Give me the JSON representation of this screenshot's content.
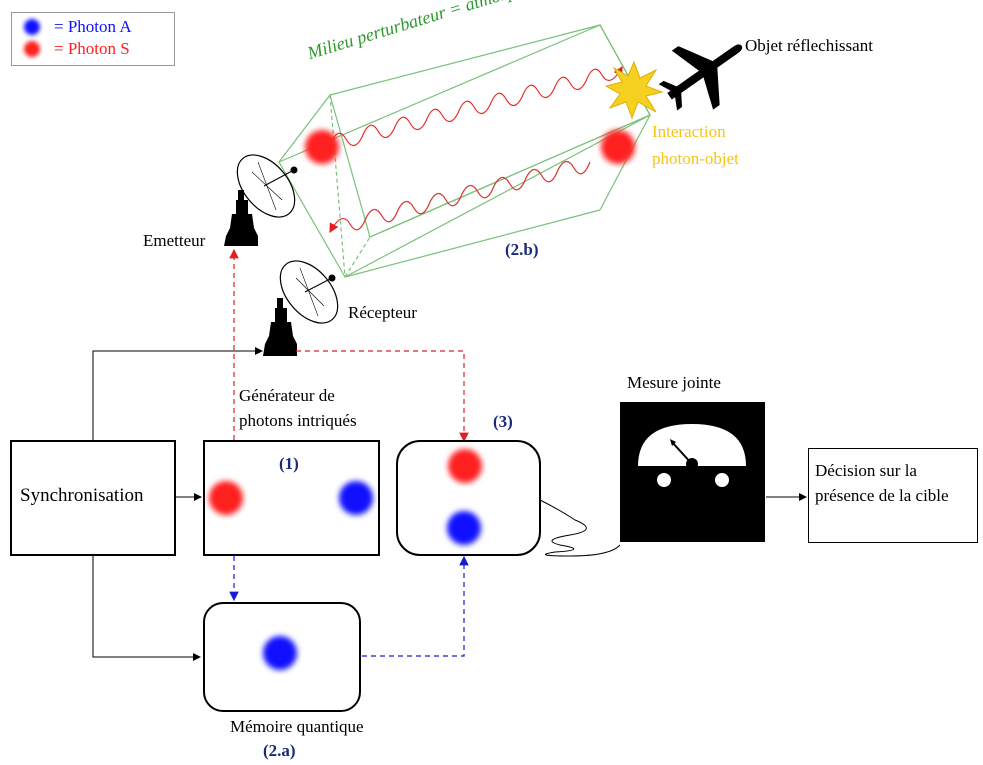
{
  "legend": {
    "photon_a": "= Photon A",
    "photon_s": "= Photon S"
  },
  "labels": {
    "milieu": "Milieu perturbateur = atmosphere",
    "objet": "Objet réflechissant",
    "interaction_1": "Interaction",
    "interaction_2": "photon-objet",
    "emetteur": "Emetteur",
    "recepteur": "Récepteur",
    "label_2b": "(2.b)",
    "generateur_1": "Générateur de",
    "generateur_2": "photons intriqués",
    "label_1": "(1)",
    "label_3": "(3)",
    "mesure": "Mesure jointe",
    "synchro": "Synchronisation",
    "decision_1": "Décision sur la",
    "decision_2": "présence de la cible",
    "memoire": "Mémoire quantique",
    "label_2a": "(2.a)"
  },
  "colors": {
    "photon_a": "#1010ff",
    "photon_s": "#ff2020",
    "atmosphere": "#2a9a2a",
    "interaction": "#f5c518",
    "index_label": "#1a2a7a"
  }
}
